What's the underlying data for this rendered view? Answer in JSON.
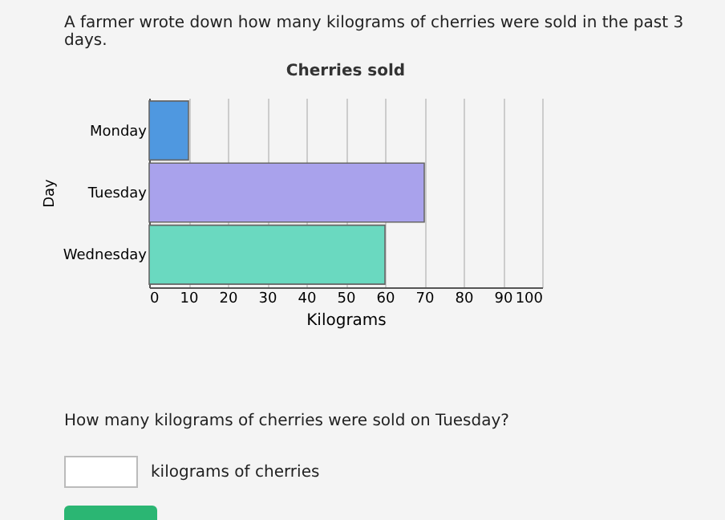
{
  "chart_data": {
    "type": "bar",
    "orientation": "horizontal",
    "title": "Cherries sold",
    "xlabel": "Kilograms",
    "ylabel": "Day",
    "categories": [
      "Monday",
      "Tuesday",
      "Wednesday"
    ],
    "values": [
      10,
      70,
      60
    ],
    "colors": [
      "#4f98e0",
      "#a9a2ec",
      "#6ad9c0"
    ],
    "xlim": [
      0,
      100
    ],
    "xticks": [
      0,
      10,
      20,
      30,
      40,
      50,
      60,
      70,
      80,
      90,
      100
    ],
    "grid": "x",
    "annotations": [
      "A farmer wrote down how many kilograms of cherries were sold in the past 3 days.",
      "How many kilograms of cherries were sold on Tuesday?",
      "kilograms of cherries"
    ]
  }
}
